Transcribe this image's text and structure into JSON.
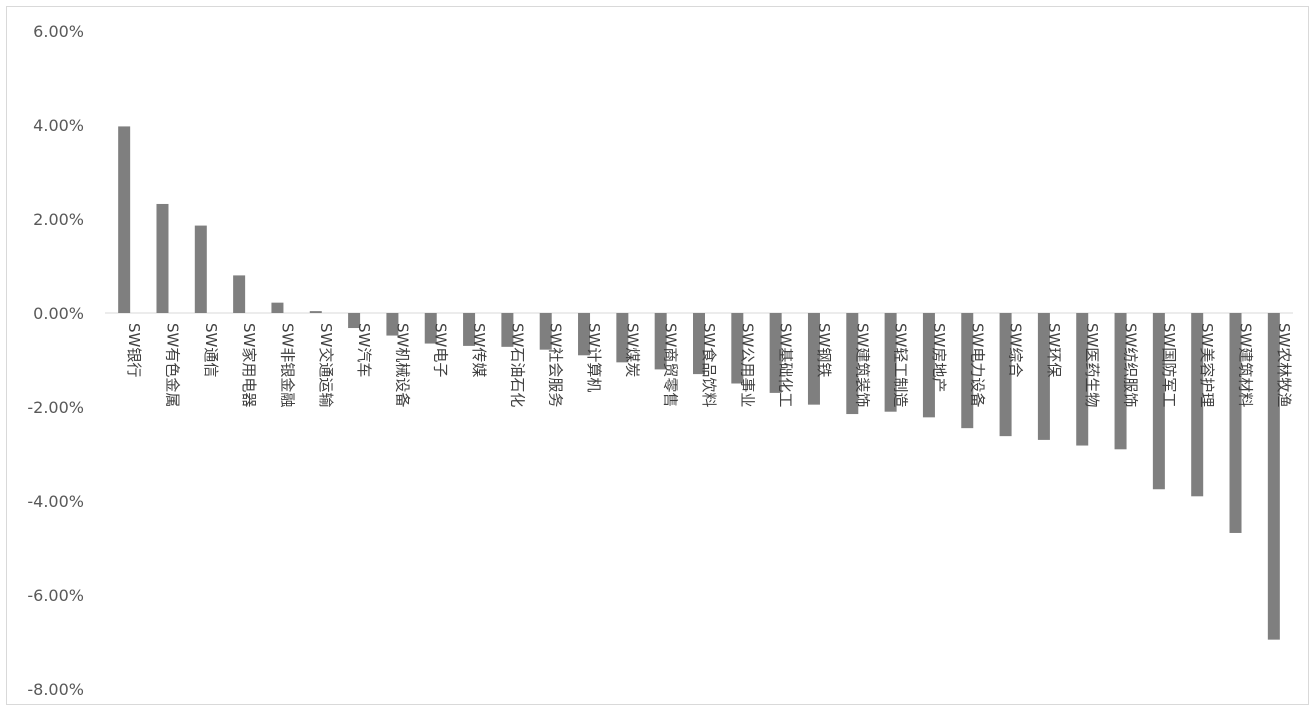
{
  "chart_data": {
    "type": "bar",
    "title": "",
    "xlabel": "",
    "ylabel": "",
    "ylim": [
      -0.08,
      0.06
    ],
    "yticks": [
      0.06,
      0.04,
      0.02,
      0.0,
      -0.02,
      -0.04,
      -0.06,
      -0.08
    ],
    "ytick_labels": [
      "6.00%",
      "4.00%",
      "2.00%",
      "0.00%",
      "-2.00%",
      "-4.00%",
      "-6.00%",
      "-8.00%"
    ],
    "grid": false,
    "legend": "none",
    "bar_color": "#7f7f7f",
    "categories": [
      "SW银行",
      "SW有色金属",
      "SW通信",
      "SW家用电器",
      "SW非银金融",
      "SW交通运输",
      "SW汽车",
      "SW机械设备",
      "SW电子",
      "SW传媒",
      "SW石油石化",
      "SW社会服务",
      "SW计算机",
      "SW煤炭",
      "SW商贸零售",
      "SW食品饮料",
      "SW公用事业",
      "SW基础化工",
      "SW钢铁",
      "SW建筑装饰",
      "SW轻工制造",
      "SW房地产",
      "SW电力设备",
      "SW综合",
      "SW环保",
      "SW医药生物",
      "SW纺织服饰",
      "SW国防军工",
      "SW美容护理",
      "SW建筑材料",
      "SW农林牧渔"
    ],
    "values": [
      0.0397,
      0.0232,
      0.0186,
      0.008,
      0.0022,
      0.0004,
      -0.0032,
      -0.0048,
      -0.0065,
      -0.007,
      -0.0072,
      -0.0078,
      -0.009,
      -0.0105,
      -0.012,
      -0.013,
      -0.015,
      -0.017,
      -0.0195,
      -0.0215,
      -0.021,
      -0.0222,
      -0.0245,
      -0.0262,
      -0.027,
      -0.0282,
      -0.029,
      -0.0375,
      -0.039,
      -0.0468,
      -0.0695
    ]
  }
}
